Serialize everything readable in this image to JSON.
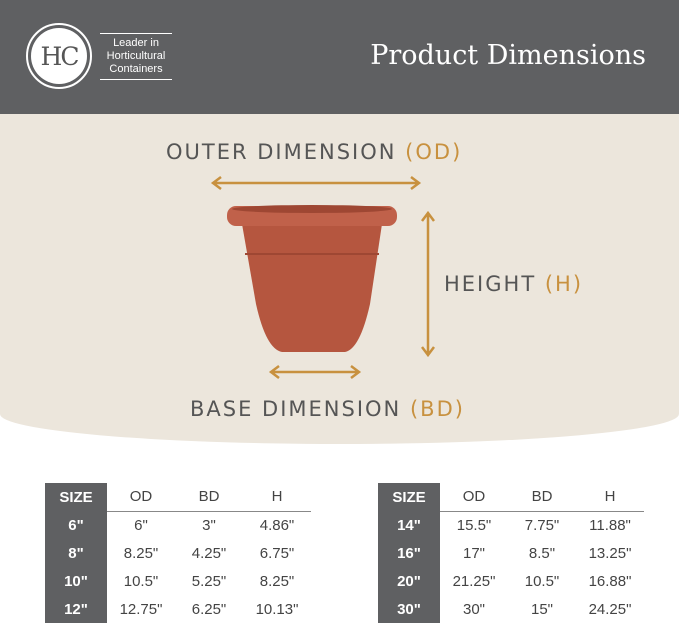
{
  "header": {
    "logo_text": "HC",
    "tagline": "Leader in Horticultural Containers",
    "title": "Product Dimensions"
  },
  "labels": {
    "od": "OUTER DIMENSION",
    "od_abbr": "(OD)",
    "h": "HEIGHT",
    "h_abbr": "(H)",
    "bd": "BASE DIMENSION",
    "bd_abbr": "(BD)"
  },
  "colors": {
    "header": "#5f6062",
    "accent": "#c8913f",
    "pot": "#b5563f",
    "background": "#ece6dc"
  },
  "table_headers": [
    "SIZE",
    "OD",
    "BD",
    "H"
  ],
  "tables": [
    [
      [
        "6\"",
        "6\"",
        "3\"",
        "4.86\""
      ],
      [
        "8\"",
        "8.25\"",
        "4.25\"",
        "6.75\""
      ],
      [
        "10\"",
        "10.5\"",
        "5.25\"",
        "8.25\""
      ],
      [
        "12\"",
        "12.75\"",
        "6.25\"",
        "10.13\""
      ]
    ],
    [
      [
        "14\"",
        "15.5\"",
        "7.75\"",
        "11.88\""
      ],
      [
        "16\"",
        "17\"",
        "8.5\"",
        "13.25\""
      ],
      [
        "20\"",
        "21.25\"",
        "10.5\"",
        "16.88\""
      ],
      [
        "30\"",
        "30\"",
        "15\"",
        "24.25\""
      ]
    ]
  ]
}
